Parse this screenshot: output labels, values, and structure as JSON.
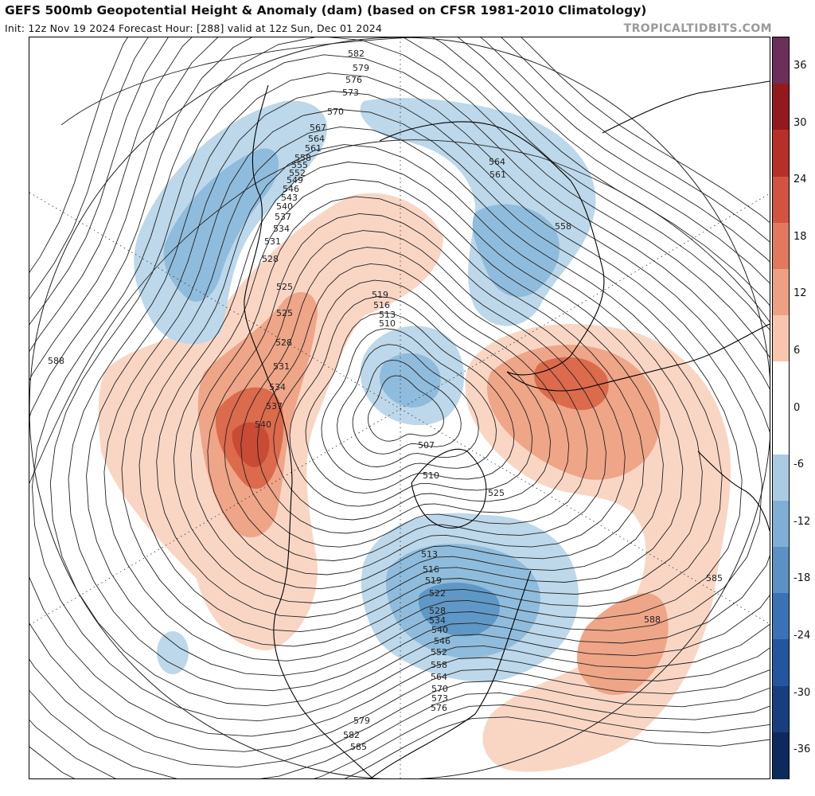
{
  "header": {
    "title": "GEFS 500mb Geopotential Height & Anomaly (dam) (based on CFSR 1981-2010 Climatology)",
    "subtitle": "Init: 12z Nov 19 2024   Forecast Hour: [288]   valid at 12z Sun, Dec 01 2024",
    "source": "TROPICALTIDBITS.COM"
  },
  "colors": {
    "colorbar": [
      "#0c2a5c",
      "#173f80",
      "#2456a0",
      "#3a72b6",
      "#5b91c5",
      "#80afd5",
      "#abcbe3",
      "#ffffff",
      "#ffffff",
      "#f7c6ad",
      "#eea083",
      "#e2795d",
      "#d2543e",
      "#b73027",
      "#94191d",
      "#6b2f59"
    ],
    "positive_light": "#f9d6c4",
    "positive_mid": "#efa587",
    "positive_strong": "#dc6a4c",
    "positive_max": "#c94a35",
    "negative_light": "#bcd8ea",
    "negative_mid": "#8fbcdc",
    "negative_strong": "#5f98c6",
    "contour": "#222222",
    "coast": "#000000"
  },
  "colorbar_ticks": [
    "36",
    "30",
    "24",
    "18",
    "12",
    "6",
    "0",
    "-6",
    "-12",
    "-18",
    "-24",
    "-30",
    "-36"
  ],
  "contour_labels": [
    "582",
    "579",
    "576",
    "573",
    "570",
    "567",
    "564",
    "561",
    "558",
    "555",
    "552",
    "549",
    "546",
    "543",
    "540",
    "537",
    "534",
    "531",
    "528",
    "525",
    "525",
    "528",
    "531",
    "534",
    "537",
    "540",
    "519",
    "516",
    "513",
    "510",
    "507",
    "510",
    "564",
    "561",
    "558",
    "525",
    "513",
    "516",
    "519",
    "522",
    "528",
    "534",
    "540",
    "546",
    "552",
    "558",
    "564",
    "570",
    "573",
    "576",
    "579",
    "582",
    "585",
    "585",
    "588",
    "588"
  ]
}
